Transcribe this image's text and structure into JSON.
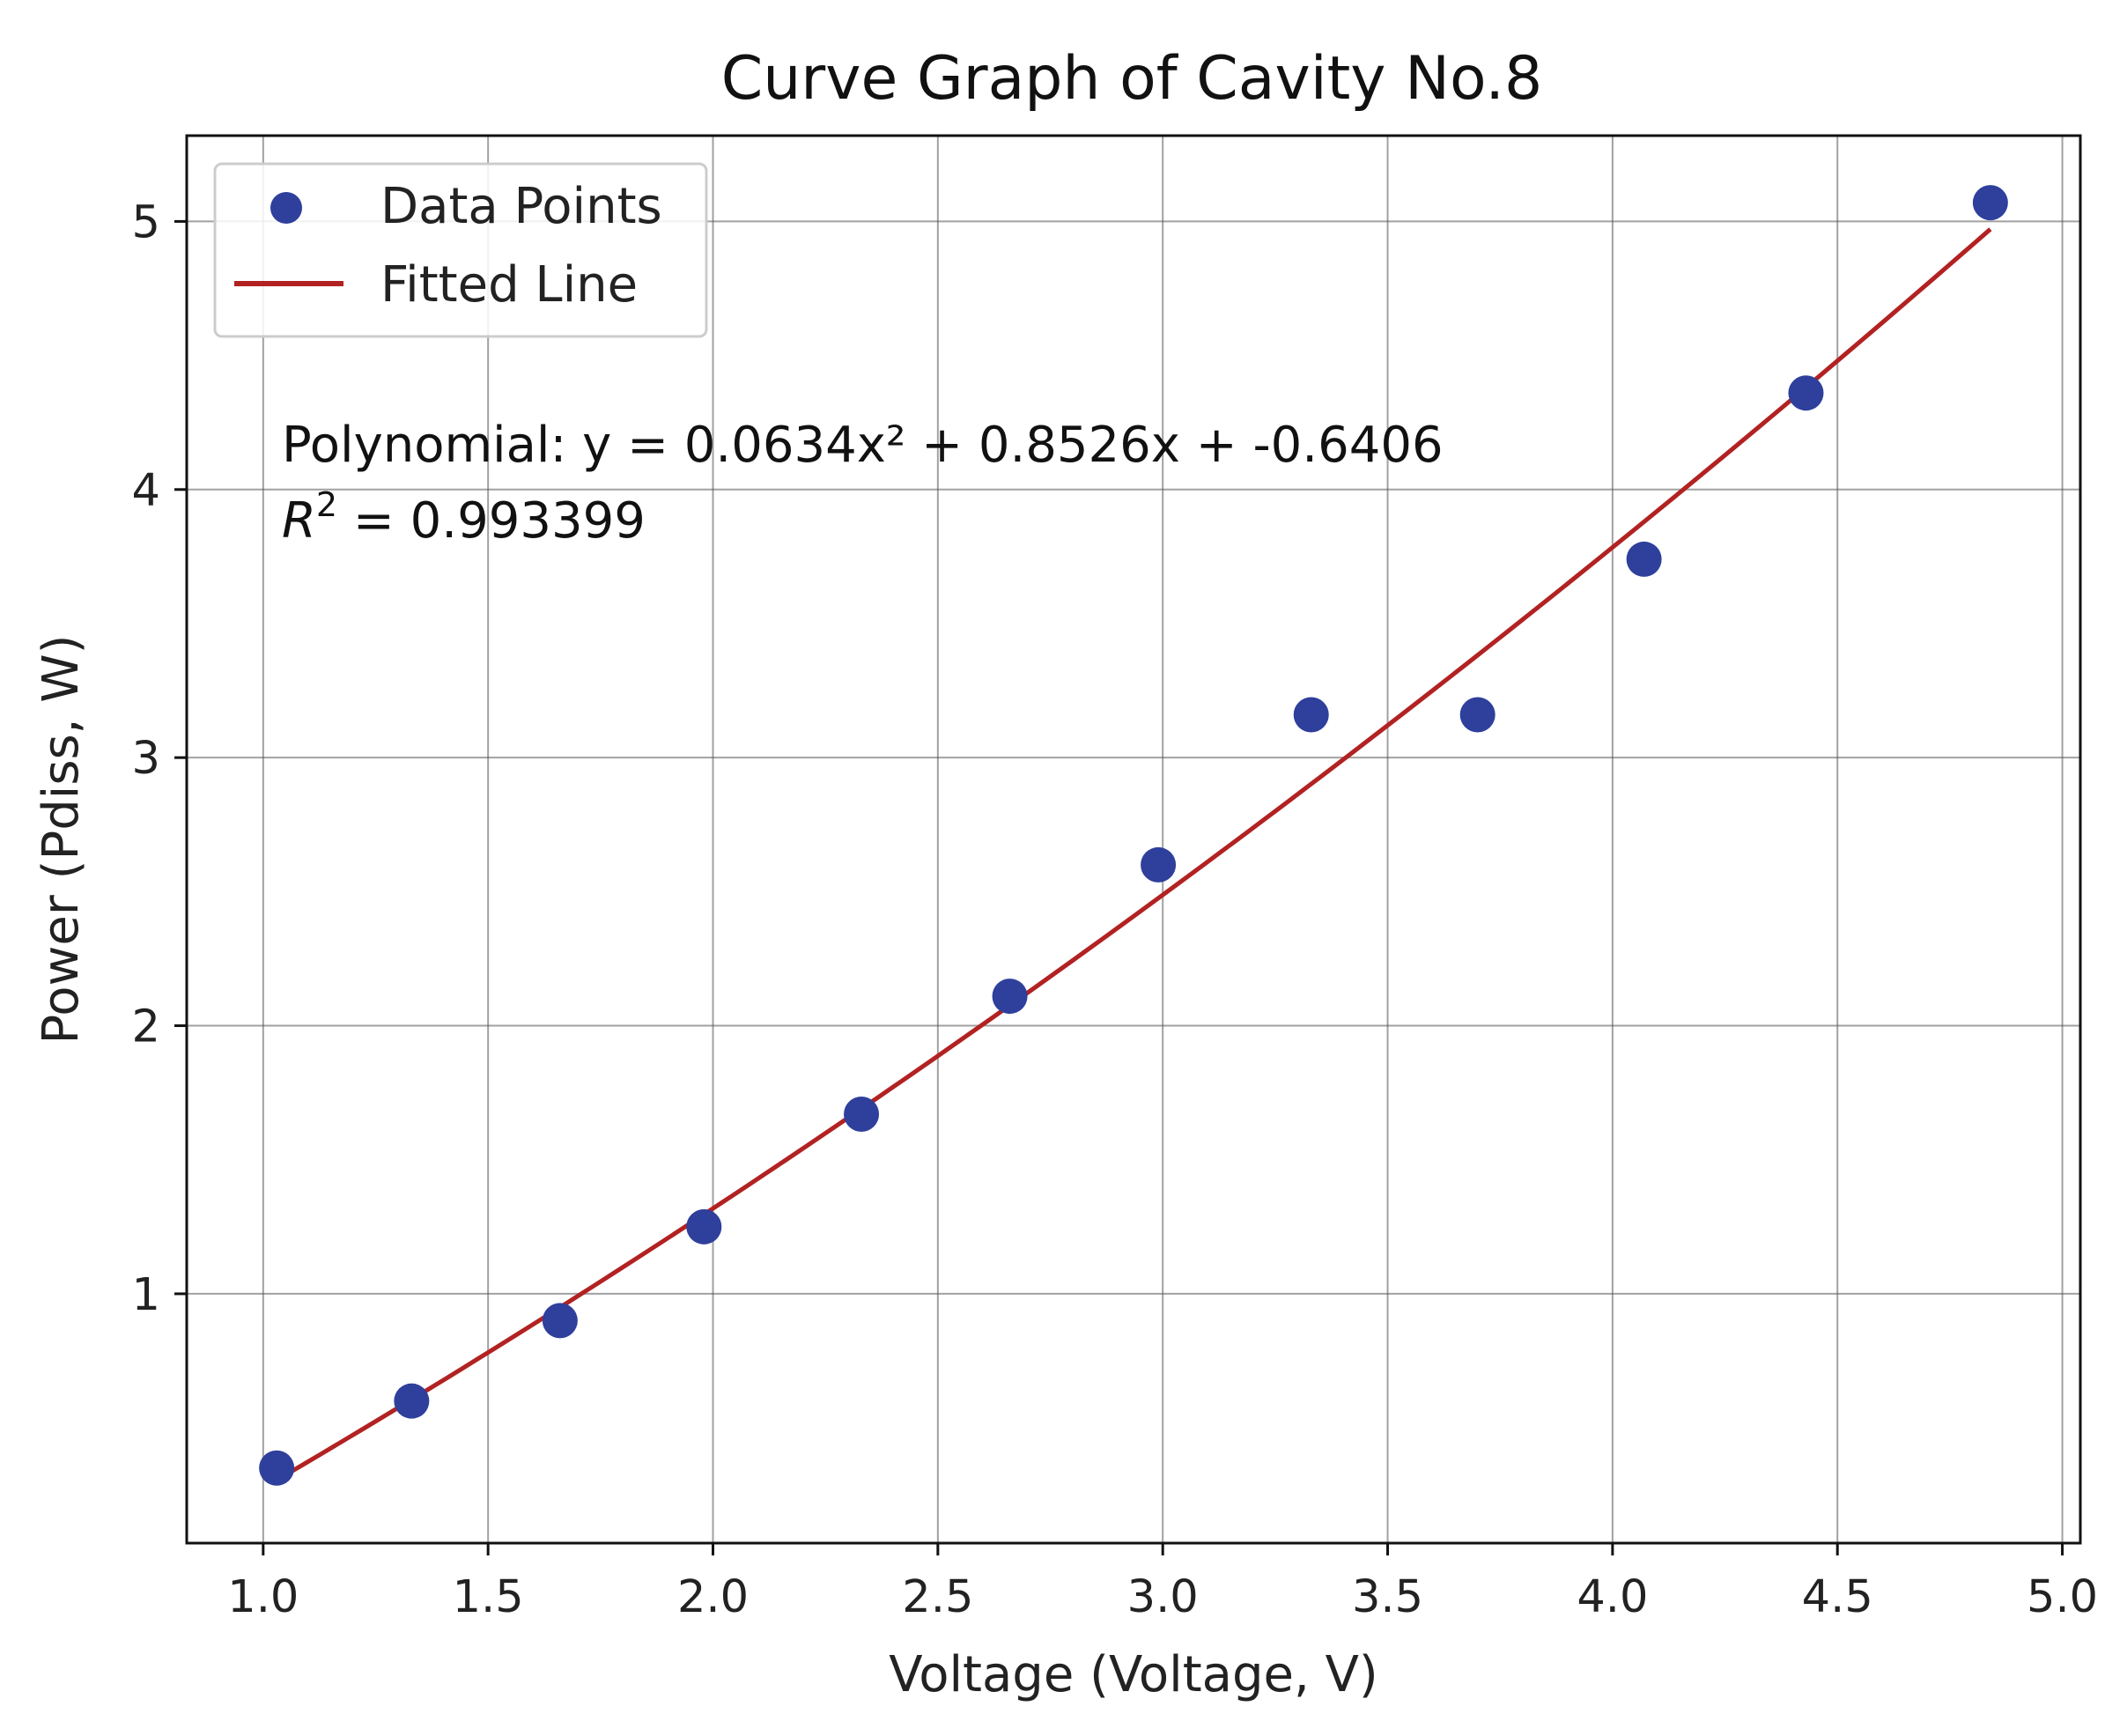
{
  "chart_data": {
    "type": "scatter",
    "title": "Curve Graph of Cavity No.8",
    "xlabel": "Voltage (Voltage, V)",
    "ylabel": "Power (Pdiss, W)",
    "xlim": [
      0.83,
      5.04
    ],
    "ylim": [
      0.07,
      5.32
    ],
    "x_ticks": [
      1.0,
      1.5,
      2.0,
      2.5,
      3.0,
      3.5,
      4.0,
      4.5,
      5.0
    ],
    "x_tick_labels": [
      "1.0",
      "1.5",
      "2.0",
      "2.5",
      "3.0",
      "3.5",
      "4.0",
      "4.5",
      "5.0"
    ],
    "y_ticks": [
      1,
      2,
      3,
      4,
      5
    ],
    "y_tick_labels": [
      "1",
      "2",
      "3",
      "4",
      "5"
    ],
    "grid": true,
    "legend_position": "top-left",
    "series": [
      {
        "name": "Data Points",
        "kind": "scatter",
        "color": "#2e3f9c",
        "x": [
          1.03,
          1.33,
          1.66,
          1.98,
          2.33,
          2.66,
          2.99,
          3.33,
          3.7,
          4.07,
          4.43,
          4.84
        ],
        "y": [
          0.35,
          0.6,
          0.9,
          1.25,
          1.67,
          2.11,
          2.6,
          3.16,
          3.16,
          3.74,
          4.36,
          5.07
        ]
      },
      {
        "name": "Fitted Line",
        "kind": "line",
        "color": "#b22222",
        "equation": {
          "a": 0.0634,
          "b": 0.8526,
          "c": -0.6406
        },
        "x_range": [
          1.03,
          4.84
        ]
      }
    ],
    "annotations": {
      "equation_text": "Polynomial: y = 0.0634x² + 0.8526x + -0.6406",
      "r2_prefix": "R",
      "r2_exponent": "2",
      "r2_value_text": " = 0.993399"
    }
  }
}
